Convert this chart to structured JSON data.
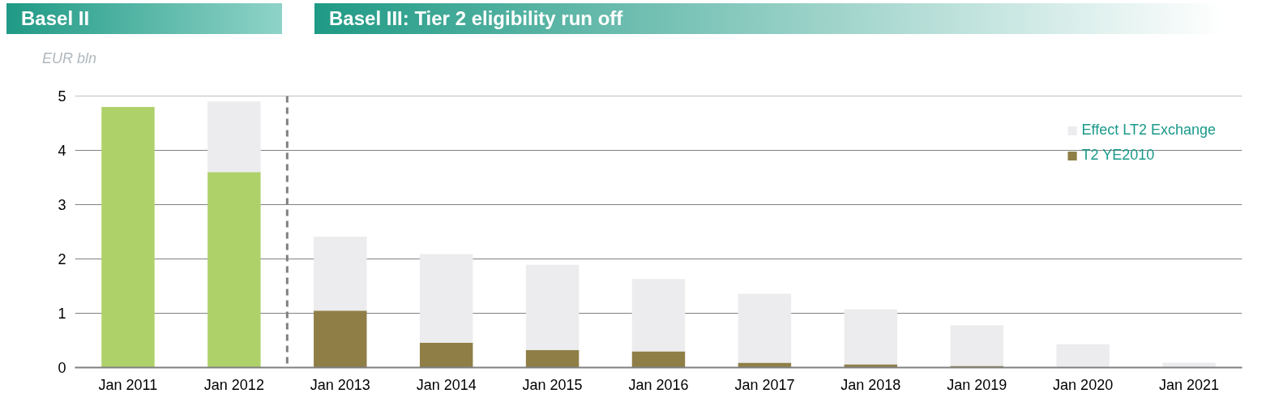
{
  "chart_data": {
    "type": "bar",
    "title": "Basel II",
    "subtitle": "Basel III: Tier 2 eligibility run off",
    "ylabel": "EUR bln",
    "x": [
      "2011-01",
      "2012-01",
      "2013-01",
      "2014-01",
      "2015-01",
      "2016-01",
      "2017-01",
      "2018-01",
      "2019-01",
      "2020-01",
      "2021-01"
    ],
    "xlim": [
      "2010-07",
      "2021-07"
    ],
    "xticks": [
      {
        "value": "2011-01",
        "label": "Jan 2011"
      },
      {
        "value": "2012-01",
        "label": "Jan 2012"
      },
      {
        "value": "2013-01",
        "label": "Jan 2013"
      },
      {
        "value": "2014-01",
        "label": "Jan 2014"
      },
      {
        "value": "2015-01",
        "label": "Jan 2015"
      },
      {
        "value": "2016-01",
        "label": "Jan 2016"
      },
      {
        "value": "2017-01",
        "label": "Jan 2017"
      },
      {
        "value": "2018-01",
        "label": "Jan 2018"
      },
      {
        "value": "2019-01",
        "label": "Jan 2019"
      },
      {
        "value": "2020-01",
        "label": "Jan 2020"
      },
      {
        "value": "2021-01",
        "label": "Jan 2021"
      }
    ],
    "stacked": true,
    "series": [
      {
        "color": "#aed16a",
        "values": [
          4.8,
          3.6,
          0,
          0,
          0,
          0,
          0,
          0,
          0,
          0,
          0
        ]
      },
      {
        "name": "T2 YE2010",
        "color": "#8f7f47",
        "values": [
          0,
          0,
          1.05,
          0.46,
          0.32,
          0.3,
          0.09,
          0.06,
          0.03,
          0,
          0
        ]
      },
      {
        "name": "Effect LT2 Exchange",
        "color": "#ececee",
        "values": [
          0,
          1.3,
          1.36,
          1.63,
          1.57,
          1.33,
          1.27,
          1.01,
          0.75,
          0.43,
          0.09
        ]
      }
    ],
    "ylim": [
      0,
      5
    ],
    "yticks": [
      0,
      1,
      2,
      3,
      4,
      5
    ],
    "grid": "y",
    "legend": "top right",
    "ref_lines": [
      {
        "axis": "x",
        "value": "2012-07",
        "color": "#808080",
        "line_style": "dashed"
      }
    ]
  }
}
